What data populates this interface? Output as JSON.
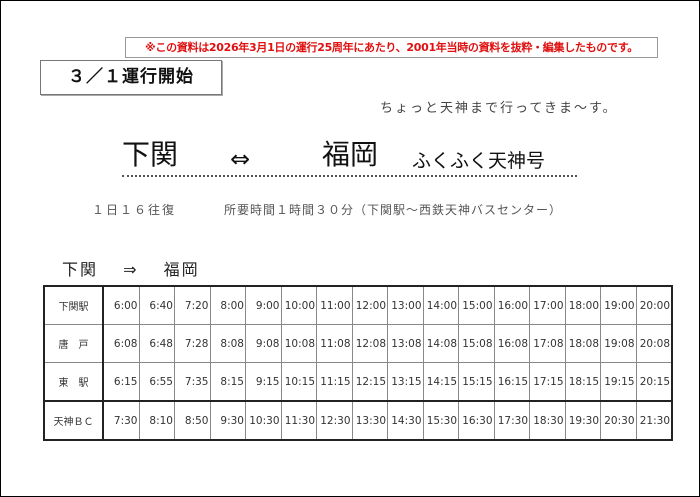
{
  "notice": "※この資料は2026年3月1日の運行25周年にあたり、2001年当時の資料を抜粋・編集したものです。",
  "start_label": "３／１運行開始",
  "tagline": "ちょっと天神まで行ってきま〜す。",
  "title": {
    "from": "下関",
    "arrow": "⇔",
    "to": "福岡",
    "service_name": "ふくふく天神号"
  },
  "frequency": "１日１６往復",
  "duration": "所要時間１時間３０分（下関駅〜西鉄天神バスセンター）",
  "direction": {
    "from": "下関",
    "arrow": "⇒",
    "to": "福岡"
  },
  "colors": {
    "notice": "#e01010"
  },
  "timetable": [
    {
      "stop": "下関駅",
      "times": [
        "6:00",
        "6:40",
        "7:20",
        "8:00",
        "9:00",
        "10:00",
        "11:00",
        "12:00",
        "13:00",
        "14:00",
        "15:00",
        "16:00",
        "17:00",
        "18:00",
        "19:00",
        "20:00"
      ]
    },
    {
      "stop": "唐　戸",
      "times": [
        "6:08",
        "6:48",
        "7:28",
        "8:08",
        "9:08",
        "10:08",
        "11:08",
        "12:08",
        "13:08",
        "14:08",
        "15:08",
        "16:08",
        "17:08",
        "18:08",
        "19:08",
        "20:08"
      ]
    },
    {
      "stop": "東　駅",
      "times": [
        "6:15",
        "6:55",
        "7:35",
        "8:15",
        "9:15",
        "10:15",
        "11:15",
        "12:15",
        "13:15",
        "14:15",
        "15:15",
        "16:15",
        "17:15",
        "18:15",
        "19:15",
        "20:15"
      ]
    },
    {
      "stop": "天神ＢＣ",
      "times": [
        "7:30",
        "8:10",
        "8:50",
        "9:30",
        "10:30",
        "11:30",
        "12:30",
        "13:30",
        "14:30",
        "15:30",
        "16:30",
        "17:30",
        "18:30",
        "19:30",
        "20:30",
        "21:30"
      ]
    }
  ]
}
